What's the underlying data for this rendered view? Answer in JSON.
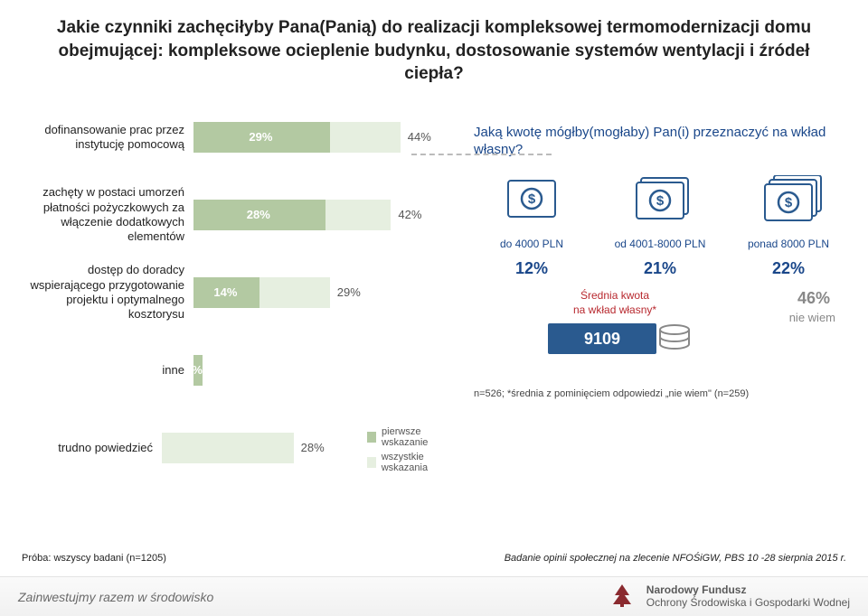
{
  "title": "Jakie czynniki zachęciłyby Pana(Panią) do realizacji kompleksowej termomodernizacji domu obejmującej: kompleksowe ocieplenie budynku, dostosowanie systemów wentylacji i źródeł ciepła?",
  "chart": {
    "bar_scale": 5.2,
    "colors": {
      "first": "#b3c9a2",
      "all": "#e6efe0",
      "first_text": "#ffffff",
      "all_text": "#555555"
    },
    "rows": [
      {
        "label": "dofinansowanie prac przez instytucję pomocową",
        "first": 29,
        "all": 44,
        "first_txt": "29%",
        "all_txt": "44%"
      },
      {
        "label": "zachęty w postaci umorzeń płatności pożyczkowych za włączenie dodatkowych elementów",
        "first": 28,
        "all": 42,
        "first_txt": "28%",
        "all_txt": "42%"
      },
      {
        "label": "dostęp do doradcy wspierającego przygotowanie projektu i optymalnego kosztorysu",
        "first": 14,
        "all": 29,
        "first_txt": "14%",
        "all_txt": "29%"
      },
      {
        "label": "inne",
        "first": 2,
        "all": 2,
        "first_txt": "2%",
        "all_txt": ""
      },
      {
        "label": "trudno powiedzieć",
        "first": 28,
        "all": 28,
        "first_txt": "",
        "all_txt": "28%",
        "single": true
      }
    ],
    "legend": {
      "first": "pierwsze wskazanie",
      "all": "wszystkie wskazania"
    }
  },
  "q2": {
    "title": "Jaką kwotę mógłby(mogłaby) Pan(i) przeznaczyć na wkład własny?",
    "buckets": [
      {
        "cap": "do 4000 PLN",
        "pct": "12%"
      },
      {
        "cap": "od 4001-8000 PLN",
        "pct": "21%"
      },
      {
        "cap": "ponad 8000 PLN",
        "pct": "22%"
      }
    ],
    "avg_label": "Średnia kwota\nna wkład własny*",
    "avg_value": "9109",
    "niewiem_pct": "46%",
    "niewiem_txt": "nie wiem",
    "note": "n=526; *średnia z pominięciem odpowiedzi „nie wiem\" (n=259)"
  },
  "bottom": {
    "left": "Próba: wszyscy badani (n=1205)",
    "right": "Badanie opinii społecznej na zlecenie NFOŚiGW, PBS 10 -28 sierpnia 2015 r."
  },
  "footer": {
    "left": "Zainwestujmy razem w środowisko",
    "right_l1": "Narodowy Fundusz",
    "right_l2": "Ochrony Środowiska i Gospodarki Wodnej"
  },
  "colors": {
    "accent_blue": "#1a478a",
    "accent_red": "#b8292f",
    "avg_box": "#2a5a8f",
    "grey": "#888888",
    "money_stroke": "#2a5a8f",
    "db_stroke": "#888888",
    "logo": "#8a2a2f"
  }
}
